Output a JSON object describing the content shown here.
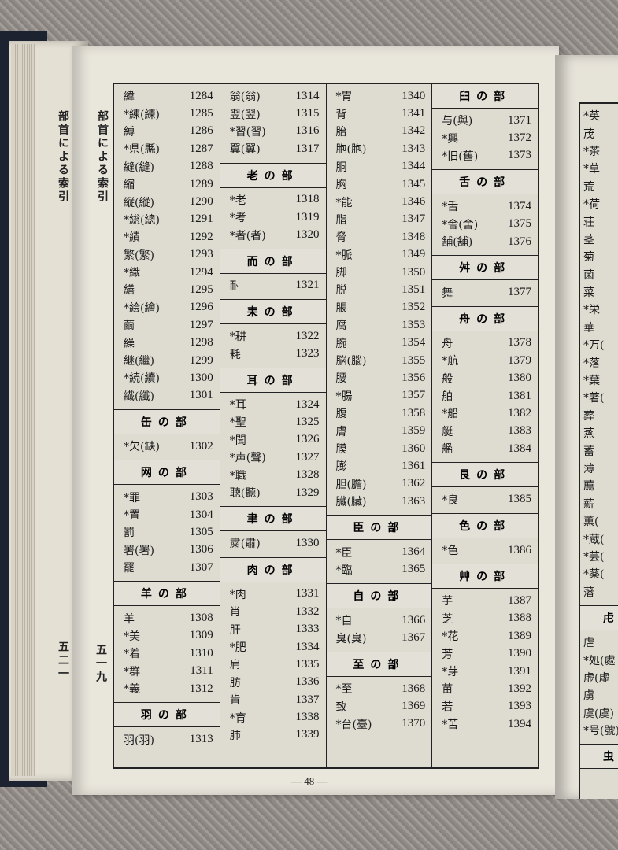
{
  "running_head_left": "部首による索引",
  "running_head_right": "部首による索引",
  "page_no_left": "五二一",
  "page_no_right": "五一九",
  "footer": "— 48 —",
  "columns": [
    [
      {
        "k": "緯",
        "n": "1284"
      },
      {
        "k": "*練(練)",
        "n": "1285"
      },
      {
        "k": "縛",
        "n": "1286"
      },
      {
        "k": "*県(縣)",
        "n": "1287"
      },
      {
        "k": "縫(縫)",
        "n": "1288"
      },
      {
        "k": "縮",
        "n": "1289"
      },
      {
        "k": "縦(縱)",
        "n": "1290"
      },
      {
        "k": "*総(總)",
        "n": "1291"
      },
      {
        "k": "*績",
        "n": "1292"
      },
      {
        "k": "繁(繁)",
        "n": "1293"
      },
      {
        "k": "*織",
        "n": "1294"
      },
      {
        "k": "繕",
        "n": "1295"
      },
      {
        "k": "*絵(繪)",
        "n": "1296"
      },
      {
        "k": "繭",
        "n": "1297"
      },
      {
        "k": "繰",
        "n": "1298"
      },
      {
        "k": "継(繼)",
        "n": "1299"
      },
      {
        "k": "*続(續)",
        "n": "1300"
      },
      {
        "k": "繊(纖)",
        "n": "1301"
      },
      {
        "h": "缶の部"
      },
      {
        "k": "*欠(缺)",
        "n": "1302"
      },
      {
        "h": "网の部"
      },
      {
        "k": "*罪",
        "n": "1303"
      },
      {
        "k": "*置",
        "n": "1304"
      },
      {
        "k": "罰",
        "n": "1305"
      },
      {
        "k": "署(署)",
        "n": "1306"
      },
      {
        "k": "罷",
        "n": "1307"
      },
      {
        "h": "羊の部"
      },
      {
        "k": "羊",
        "n": "1308"
      },
      {
        "k": "*美",
        "n": "1309"
      },
      {
        "k": "*着",
        "n": "1310"
      },
      {
        "k": "*群",
        "n": "1311"
      },
      {
        "k": "*義",
        "n": "1312"
      },
      {
        "h": "羽の部"
      },
      {
        "k": "羽(羽)",
        "n": "1313"
      }
    ],
    [
      {
        "k": "翁(翁)",
        "n": "1314"
      },
      {
        "k": "翌(翌)",
        "n": "1315"
      },
      {
        "k": "*習(習)",
        "n": "1316"
      },
      {
        "k": "翼(翼)",
        "n": "1317"
      },
      {
        "h": "老の部"
      },
      {
        "k": "*老",
        "n": "1318"
      },
      {
        "k": "*考",
        "n": "1319"
      },
      {
        "k": "*者(者)",
        "n": "1320"
      },
      {
        "h": "而の部"
      },
      {
        "k": "耐",
        "n": "1321"
      },
      {
        "h": "耒の部"
      },
      {
        "k": "*耕",
        "n": "1322"
      },
      {
        "k": "耗",
        "n": "1323"
      },
      {
        "h": "耳の部"
      },
      {
        "k": "*耳",
        "n": "1324"
      },
      {
        "k": "*聖",
        "n": "1325"
      },
      {
        "k": "*聞",
        "n": "1326"
      },
      {
        "k": "*声(聲)",
        "n": "1327"
      },
      {
        "k": "*職",
        "n": "1328"
      },
      {
        "k": "聴(聽)",
        "n": "1329"
      },
      {
        "h": "聿の部"
      },
      {
        "k": "粛(肅)",
        "n": "1330"
      },
      {
        "h": "肉の部"
      },
      {
        "k": "*肉",
        "n": "1331"
      },
      {
        "k": "肖",
        "n": "1332"
      },
      {
        "k": "肝",
        "n": "1333"
      },
      {
        "k": "*肥",
        "n": "1334"
      },
      {
        "k": "肩",
        "n": "1335"
      },
      {
        "k": "肪",
        "n": "1336"
      },
      {
        "k": "肯",
        "n": "1337"
      },
      {
        "k": "*育",
        "n": "1338"
      },
      {
        "k": "肺",
        "n": "1339"
      }
    ],
    [
      {
        "k": "*胃",
        "n": "1340"
      },
      {
        "k": "背",
        "n": "1341"
      },
      {
        "k": "胎",
        "n": "1342"
      },
      {
        "k": "胞(胞)",
        "n": "1343"
      },
      {
        "k": "胴",
        "n": "1344"
      },
      {
        "k": "胸",
        "n": "1345"
      },
      {
        "k": "*能",
        "n": "1346"
      },
      {
        "k": "脂",
        "n": "1347"
      },
      {
        "k": "脅",
        "n": "1348"
      },
      {
        "k": "*脈",
        "n": "1349"
      },
      {
        "k": "脚",
        "n": "1350"
      },
      {
        "k": "脱",
        "n": "1351"
      },
      {
        "k": "脹",
        "n": "1352"
      },
      {
        "k": "腐",
        "n": "1353"
      },
      {
        "k": "腕",
        "n": "1354"
      },
      {
        "k": "脳(腦)",
        "n": "1355"
      },
      {
        "k": "腰",
        "n": "1356"
      },
      {
        "k": "*腸",
        "n": "1357"
      },
      {
        "k": "腹",
        "n": "1358"
      },
      {
        "k": "膚",
        "n": "1359"
      },
      {
        "k": "膜",
        "n": "1360"
      },
      {
        "k": "膨",
        "n": "1361"
      },
      {
        "k": "胆(膽)",
        "n": "1362"
      },
      {
        "k": "臓(臟)",
        "n": "1363"
      },
      {
        "h": "臣の部"
      },
      {
        "k": "*臣",
        "n": "1364"
      },
      {
        "k": "*臨",
        "n": "1365"
      },
      {
        "h": "自の部"
      },
      {
        "k": "*自",
        "n": "1366"
      },
      {
        "k": "臭(臭)",
        "n": "1367"
      },
      {
        "h": "至の部"
      },
      {
        "k": "*至",
        "n": "1368"
      },
      {
        "k": "致",
        "n": "1369"
      },
      {
        "k": "*台(臺)",
        "n": "1370"
      }
    ],
    [
      {
        "h": "臼の部"
      },
      {
        "k": "与(與)",
        "n": "1371"
      },
      {
        "k": "*興",
        "n": "1372"
      },
      {
        "k": "*旧(舊)",
        "n": "1373"
      },
      {
        "h": "舌の部"
      },
      {
        "k": "*舌",
        "n": "1374"
      },
      {
        "k": "*舎(舍)",
        "n": "1375"
      },
      {
        "k": "舗(舖)",
        "n": "1376"
      },
      {
        "h": "舛の部"
      },
      {
        "k": "舞",
        "n": "1377"
      },
      {
        "h": "舟の部"
      },
      {
        "k": "舟",
        "n": "1378"
      },
      {
        "k": "*航",
        "n": "1379"
      },
      {
        "k": "般",
        "n": "1380"
      },
      {
        "k": "舶",
        "n": "1381"
      },
      {
        "k": "*船",
        "n": "1382"
      },
      {
        "k": "艇",
        "n": "1383"
      },
      {
        "k": "艦",
        "n": "1384"
      },
      {
        "h": "艮の部"
      },
      {
        "k": "*良",
        "n": "1385"
      },
      {
        "h": "色の部"
      },
      {
        "k": "*色",
        "n": "1386"
      },
      {
        "h": "艸の部"
      },
      {
        "k": "芋",
        "n": "1387"
      },
      {
        "k": "芝",
        "n": "1388"
      },
      {
        "k": "*花",
        "n": "1389"
      },
      {
        "k": "芳",
        "n": "1390"
      },
      {
        "k": "*芽",
        "n": "1391"
      },
      {
        "k": "苗",
        "n": "1392"
      },
      {
        "k": "若",
        "n": "1393"
      },
      {
        "k": "*苦",
        "n": "1394"
      }
    ]
  ],
  "right_page_partial": [
    {
      "k": "*英"
    },
    {
      "k": "茂"
    },
    {
      "k": "*茶"
    },
    {
      "k": "*草"
    },
    {
      "k": "荒"
    },
    {
      "k": "*荷"
    },
    {
      "k": "荘"
    },
    {
      "k": "茎"
    },
    {
      "k": "菊"
    },
    {
      "k": "菌"
    },
    {
      "k": "菜"
    },
    {
      "k": "*栄"
    },
    {
      "k": "華"
    },
    {
      "k": "*万("
    },
    {
      "k": "*落"
    },
    {
      "k": "*葉"
    },
    {
      "k": "*著("
    },
    {
      "k": "葬"
    },
    {
      "k": "蒸"
    },
    {
      "k": "蓄"
    },
    {
      "k": "薄"
    },
    {
      "k": "薦"
    },
    {
      "k": "薪"
    },
    {
      "k": "薫("
    },
    {
      "k": "*蔵("
    },
    {
      "k": "*芸("
    },
    {
      "k": "*薬("
    },
    {
      "k": "藩"
    },
    {
      "h": "虍"
    },
    {
      "k": "虐"
    },
    {
      "k": "*処(處"
    },
    {
      "k": "虚(虛"
    },
    {
      "k": "虜"
    },
    {
      "k": "虞(虞)"
    },
    {
      "k": "*号(號)"
    },
    {
      "h": "虫"
    }
  ]
}
